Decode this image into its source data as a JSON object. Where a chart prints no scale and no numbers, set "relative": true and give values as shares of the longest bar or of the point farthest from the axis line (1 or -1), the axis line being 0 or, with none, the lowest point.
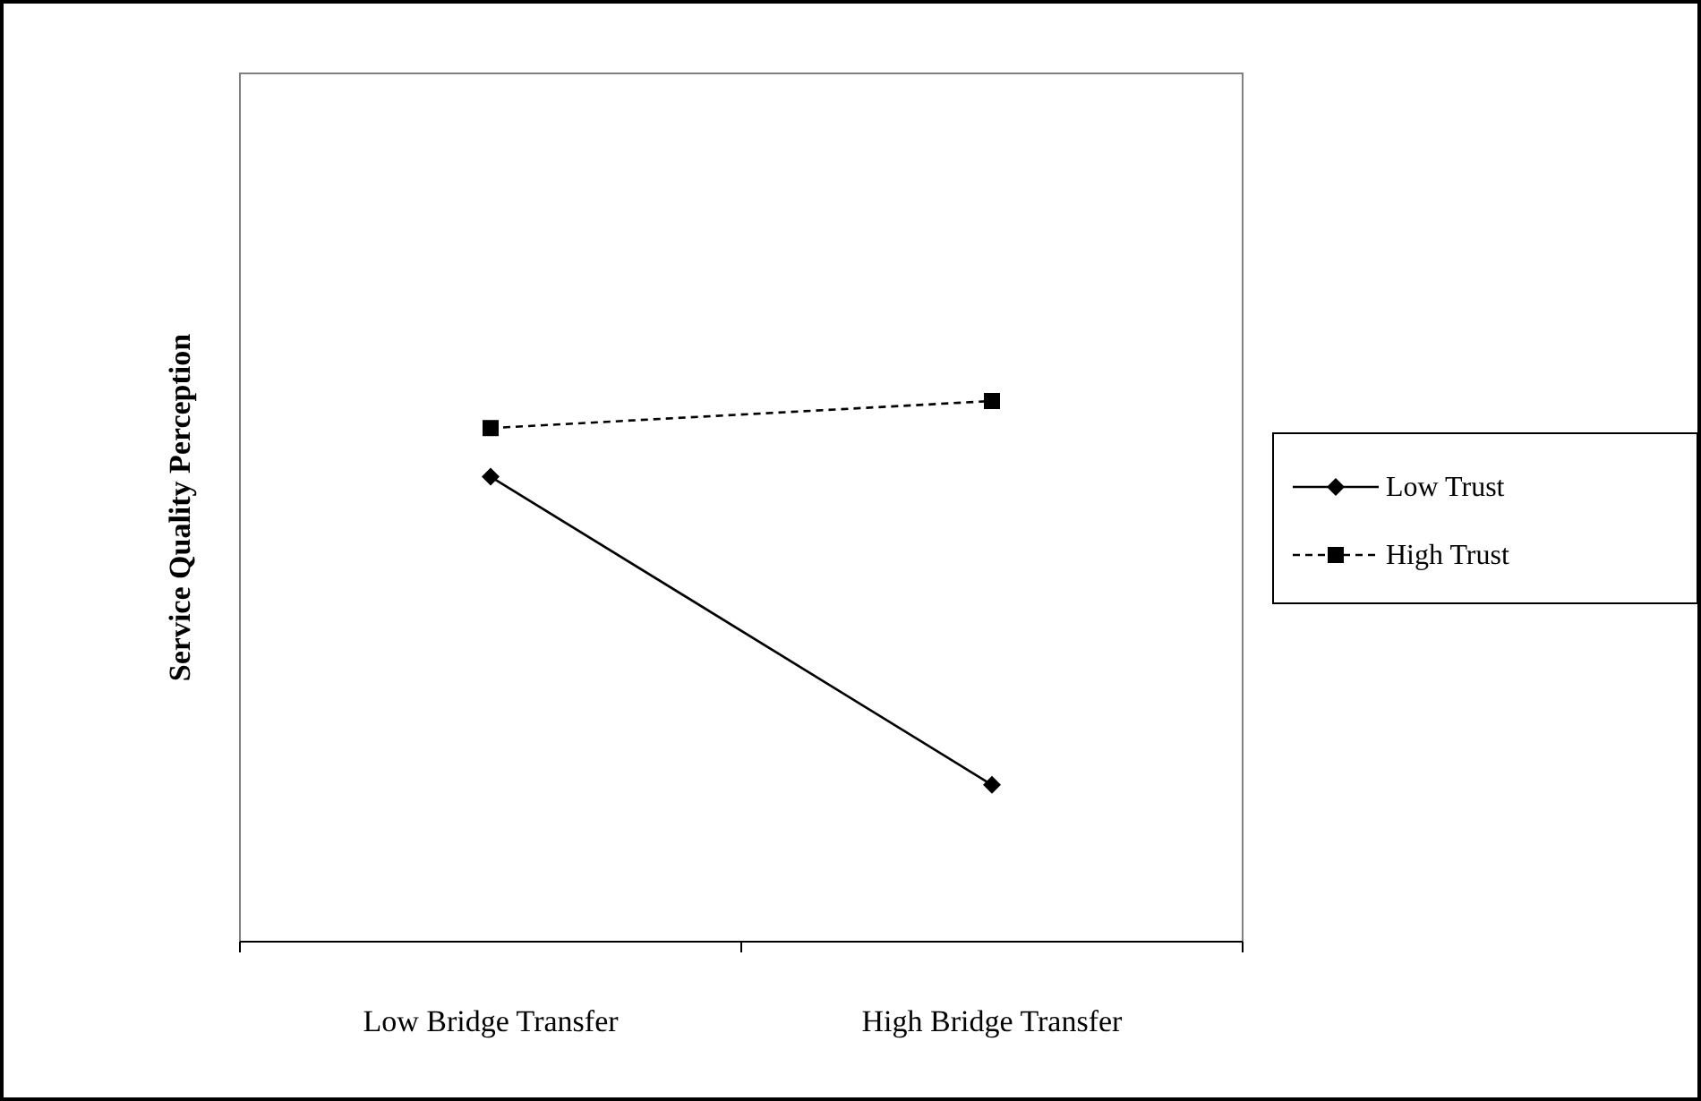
{
  "chart_data": {
    "type": "line",
    "ylabel": "Service Quality Perception",
    "categories": [
      "Low Bridge Transfer",
      "High Bridge Transfer"
    ],
    "relative": true,
    "legend": "right",
    "series": [
      {
        "name": "Low Trust",
        "color": "#000000",
        "values": [
          0.86,
          0.29
        ],
        "marker": "diamond",
        "line_style": "solid"
      },
      {
        "name": "High Trust",
        "color": "#000000",
        "values": [
          0.95,
          1
        ],
        "marker": "square",
        "line_style": "dashed"
      }
    ]
  }
}
